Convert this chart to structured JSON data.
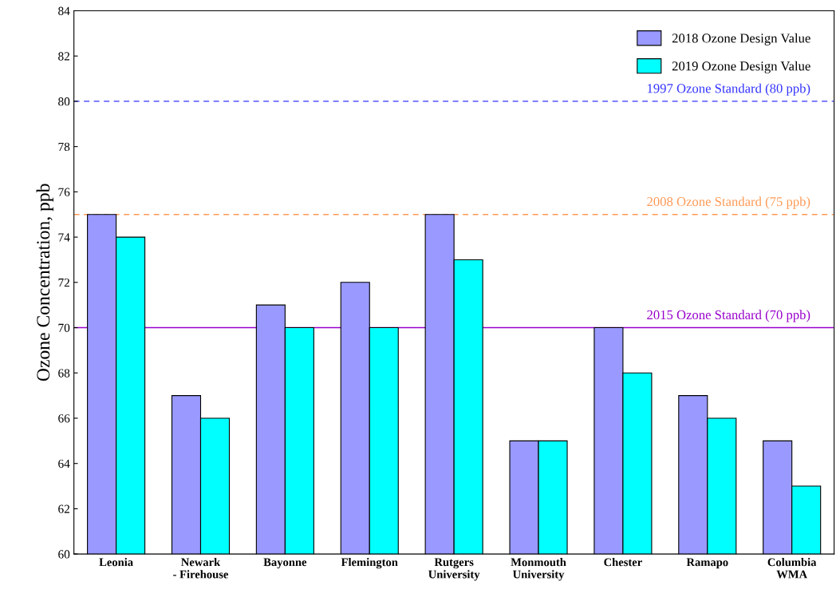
{
  "chart_data": {
    "type": "bar",
    "ylabel": "Ozone Concentration, ppb",
    "categories": [
      "Leonia",
      "Newark\n- Firehouse",
      "Bayonne",
      "Flemington",
      "Rutgers\nUniversity",
      "Monmouth\nUniversity",
      "Chester",
      "Ramapo",
      "Columbia\nWMA"
    ],
    "series": [
      {
        "name": "2018 Ozone Design Value",
        "color": "#9999ff",
        "values": [
          75,
          67,
          71,
          72,
          75,
          65,
          70,
          67,
          65
        ]
      },
      {
        "name": "2019 Ozone Design Value",
        "color": "#00ffff",
        "values": [
          74,
          66,
          70,
          70,
          73,
          65,
          68,
          66,
          63
        ]
      }
    ],
    "ylim": [
      60,
      84
    ],
    "yticks": [
      60,
      62,
      64,
      66,
      68,
      70,
      72,
      74,
      76,
      78,
      80,
      82,
      84
    ],
    "ref_lines": [
      {
        "axis": "y",
        "value": 80,
        "label": "1997 Ozone Standard (80 ppb)",
        "color": "#3333ff",
        "line_style": "dashed"
      },
      {
        "axis": "y",
        "value": 75,
        "label": "2008 Ozone Standard (75 ppb)",
        "color": "#ff9955",
        "line_style": "dashed"
      },
      {
        "axis": "y",
        "value": 70,
        "label": "2015 Ozone Standard (70 ppb)",
        "color": "#9900cc",
        "line_style": "solid"
      }
    ],
    "grid": false,
    "legend": "top right"
  }
}
